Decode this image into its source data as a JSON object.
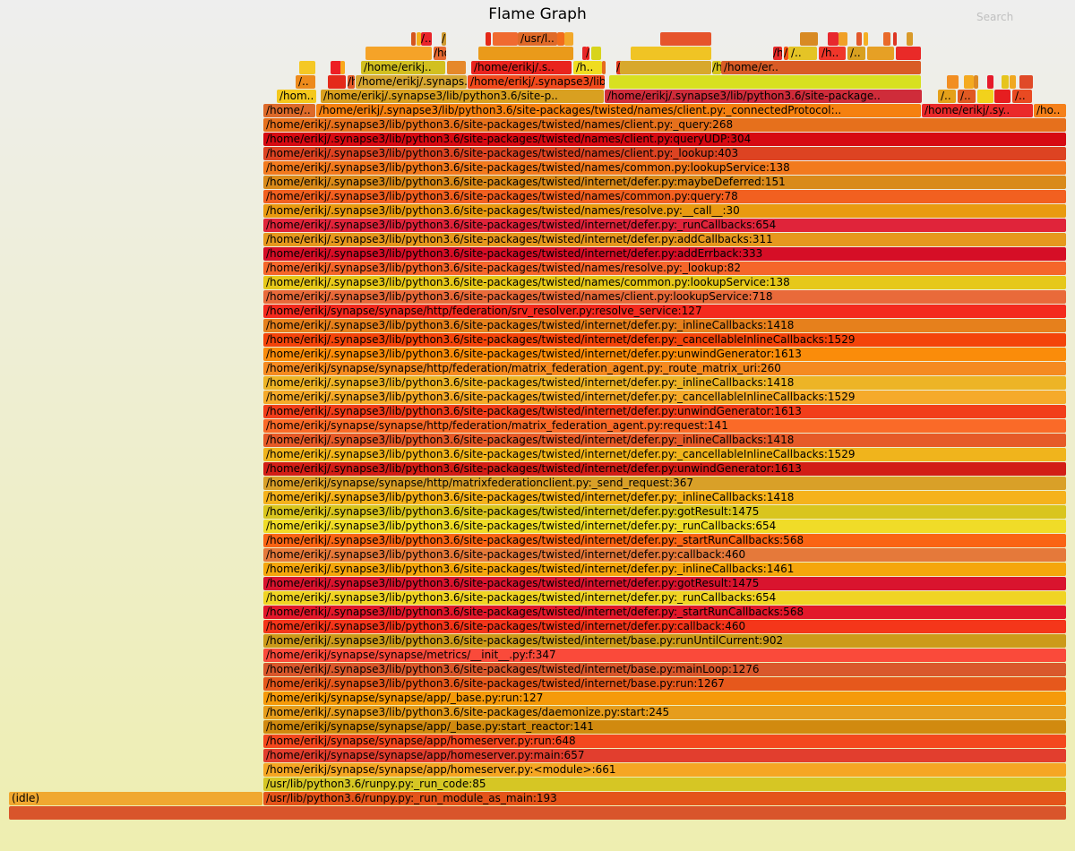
{
  "title": "Flame Graph",
  "search_label": "Search",
  "frames": [
    {
      "label": "",
      "color": "#d9552b"
    },
    {
      "label": "(idle)",
      "color": "#f0a830"
    },
    {
      "label": "/usr/lib/python3.6/runpy.py:_run_module_as_main:193",
      "color": "#e4541a"
    },
    {
      "label": "/usr/lib/python3.6/runpy.py:_run_code:85",
      "color": "#d6c624"
    },
    {
      "label": "/home/erikj/synapse/synapse/app/homeserver.py:<module>:661",
      "color": "#f5a623"
    },
    {
      "label": "/home/erikj/synapse/synapse/app/homeserver.py:main:657",
      "color": "#e23e2e"
    },
    {
      "label": "/home/erikj/synapse/synapse/app/homeserver.py:run:648",
      "color": "#f4481e"
    },
    {
      "label": "/home/erikj/synapse/synapse/app/_base.py:start_reactor:141",
      "color": "#d18a0f"
    },
    {
      "label": "/home/erikj/.synapse3/lib/python3.6/site-packages/daemonize.py:start:245",
      "color": "#e69d1c"
    },
    {
      "label": "/home/erikj/synapse/synapse/app/_base.py:run:127",
      "color": "#f59a0a"
    },
    {
      "label": "/home/erikj/.synapse3/lib/python3.6/site-packages/twisted/internet/base.py:run:1267",
      "color": "#e6581c"
    },
    {
      "label": "/home/erikj/.synapse3/lib/python3.6/site-packages/twisted/internet/base.py:mainLoop:1276",
      "color": "#d9582c"
    },
    {
      "label": "/home/erikj/synapse/synapse/metrics/__init__.py:f:347",
      "color": "#fa4a3a"
    },
    {
      "label": "/home/erikj/.synapse3/lib/python3.6/site-packages/twisted/internet/base.py:runUntilCurrent:902",
      "color": "#cc9a1a"
    },
    {
      "label": "/home/erikj/.synapse3/lib/python3.6/site-packages/twisted/internet/defer.py:callback:460",
      "color": "#f4361a"
    },
    {
      "label": "/home/erikj/.synapse3/lib/python3.6/site-packages/twisted/internet/defer.py:_startRunCallbacks:568",
      "color": "#e2182a"
    },
    {
      "label": "/home/erikj/.synapse3/lib/python3.6/site-packages/twisted/internet/defer.py:_runCallbacks:654",
      "color": "#f0d424"
    },
    {
      "label": "/home/erikj/.synapse3/lib/python3.6/site-packages/twisted/internet/defer.py:gotResult:1475",
      "color": "#d9142e"
    },
    {
      "label": "/home/erikj/.synapse3/lib/python3.6/site-packages/twisted/internet/defer.py:_inlineCallbacks:1461",
      "color": "#f5a60c"
    },
    {
      "label": "/home/erikj/.synapse3/lib/python3.6/site-packages/twisted/internet/defer.py:callback:460",
      "color": "#e5793a"
    },
    {
      "label": "/home/erikj/.synapse3/lib/python3.6/site-packages/twisted/internet/defer.py:_startRunCallbacks:568",
      "color": "#fa6414"
    },
    {
      "label": "/home/erikj/.synapse3/lib/python3.6/site-packages/twisted/internet/defer.py:_runCallbacks:654",
      "color": "#f0dc28"
    },
    {
      "label": "/home/erikj/.synapse3/lib/python3.6/site-packages/twisted/internet/defer.py:gotResult:1475",
      "color": "#d9c51e"
    },
    {
      "label": "/home/erikj/.synapse3/lib/python3.6/site-packages/twisted/internet/defer.py:_inlineCallbacks:1418",
      "color": "#f5b21c"
    },
    {
      "label": "/home/erikj/synapse/synapse/http/matrixfederationclient.py:_send_request:367",
      "color": "#d9a028"
    },
    {
      "label": "/home/erikj/.synapse3/lib/python3.6/site-packages/twisted/internet/defer.py:unwindGenerator:1613",
      "color": "#d21e16"
    },
    {
      "label": "/home/erikj/.synapse3/lib/python3.6/site-packages/twisted/internet/defer.py:_cancellableInlineCallbacks:1529",
      "color": "#f0b41c"
    },
    {
      "label": "/home/erikj/.synapse3/lib/python3.6/site-packages/twisted/internet/defer.py:_inlineCallbacks:1418",
      "color": "#e65a28"
    },
    {
      "label": "/home/erikj/synapse/synapse/http/federation/matrix_federation_agent.py:request:141",
      "color": "#fa6a28"
    },
    {
      "label": "/home/erikj/.synapse3/lib/python3.6/site-packages/twisted/internet/defer.py:unwindGenerator:1613",
      "color": "#f23e1a"
    },
    {
      "label": "/home/erikj/.synapse3/lib/python3.6/site-packages/twisted/internet/defer.py:_cancellableInlineCallbacks:1529",
      "color": "#f5aa2a"
    },
    {
      "label": "/home/erikj/.synapse3/lib/python3.6/site-packages/twisted/internet/defer.py:_inlineCallbacks:1418",
      "color": "#edb426"
    },
    {
      "label": "/home/erikj/synapse/synapse/http/federation/matrix_federation_agent.py:_route_matrix_uri:260",
      "color": "#f58a20"
    },
    {
      "label": "/home/erikj/.synapse3/lib/python3.6/site-packages/twisted/internet/defer.py:unwindGenerator:1613",
      "color": "#fa8c0a"
    },
    {
      "label": "/home/erikj/.synapse3/lib/python3.6/site-packages/twisted/internet/defer.py:_cancellableInlineCallbacks:1529",
      "color": "#f4440a"
    },
    {
      "label": "/home/erikj/.synapse3/lib/python3.6/site-packages/twisted/internet/defer.py:_inlineCallbacks:1418",
      "color": "#e6801c"
    },
    {
      "label": "/home/erikj/synapse/synapse/http/federation/srv_resolver.py:resolve_service:127",
      "color": "#f42a1e"
    },
    {
      "label": "/home/erikj/.synapse3/lib/python3.6/site-packages/twisted/names/client.py:lookupService:718",
      "color": "#e96a3a"
    },
    {
      "label": "/home/erikj/.synapse3/lib/python3.6/site-packages/twisted/names/common.py:lookupService:138",
      "color": "#e6c81a"
    },
    {
      "label": "/home/erikj/.synapse3/lib/python3.6/site-packages/twisted/names/resolve.py:_lookup:82",
      "color": "#f5662a"
    },
    {
      "label": "/home/erikj/.synapse3/lib/python3.6/site-packages/twisted/internet/defer.py:addErrback:333",
      "color": "#d60e26"
    },
    {
      "label": "/home/erikj/.synapse3/lib/python3.6/site-packages/twisted/internet/defer.py:addCallbacks:311",
      "color": "#e6981e"
    },
    {
      "label": "/home/erikj/.synapse3/lib/python3.6/site-packages/twisted/internet/defer.py:_runCallbacks:654",
      "color": "#e0243a"
    },
    {
      "label": "/home/erikj/.synapse3/lib/python3.6/site-packages/twisted/names/resolve.py:__call__:30",
      "color": "#e99a10"
    },
    {
      "label": "/home/erikj/.synapse3/lib/python3.6/site-packages/twisted/names/common.py:query:78",
      "color": "#f26020"
    },
    {
      "label": "/home/erikj/.synapse3/lib/python3.6/site-packages/twisted/internet/defer.py:maybeDeferred:151",
      "color": "#d98a1a"
    },
    {
      "label": "/home/erikj/.synapse3/lib/python3.6/site-packages/twisted/names/common.py:lookupService:138",
      "color": "#f27a1e"
    },
    {
      "label": "/home/erikj/.synapse3/lib/python3.6/site-packages/twisted/names/client.py:_lookup:403",
      "color": "#dd4322"
    },
    {
      "label": "/home/erikj/.synapse3/lib/python3.6/site-packages/twisted/names/client.py:queryUDP:304",
      "color": "#d60a12"
    },
    {
      "label": "/home/erikj/.synapse3/lib/python3.6/site-packages/twisted/names/client.py:_query:268",
      "color": "#e6701c"
    },
    {
      "label": "/home/..",
      "color": "#dd6a2a"
    },
    {
      "label": "/home/erikj/.synapse3/lib/python3.6/site-packages/twisted/names/client.py:_connectedProtocol:..",
      "color": "#f58010"
    },
    {
      "label": "/home/erikj/.sy..",
      "color": "#ea2a2a"
    },
    {
      "label": "/ho..",
      "color": "#f5801a"
    },
    {
      "label": "/hom..",
      "color": "#f4c81c"
    },
    {
      "label": "/home/erikj/.synapse3/lib/python3.6/site-p..",
      "color": "#d9a020"
    },
    {
      "label": "/home/erikj/.synapse3/lib/python3.6/site-package..",
      "color": "#cf2c3a"
    },
    {
      "label": "/..",
      "color": "#e4a01a"
    },
    {
      "label": "/..",
      "color": "#e05a22"
    },
    {
      "label": "",
      "color": "#f2d21c"
    },
    {
      "label": "",
      "color": "#e61e20"
    },
    {
      "label": "/..",
      "color": "#e94a22"
    },
    {
      "label": "/..",
      "color": "#ed8a1c"
    },
    {
      "label": "",
      "color": "#e42a1a"
    },
    {
      "label": "/home/erikj/.sy..",
      "color": "#e45a28"
    },
    {
      "label": "/home/erikj/.synaps..",
      "color": "#d6a632"
    },
    {
      "label": "/home/erikj/.synapse3/lib/python3.6/site-packag..",
      "color": "#f24a1c"
    },
    {
      "label": "",
      "color": "#d8e020"
    },
    {
      "label": "",
      "color": "#f28e22"
    },
    {
      "label": "",
      "color": "#f4aa20"
    },
    {
      "label": "",
      "color": "#dd8a24"
    },
    {
      "label": "",
      "color": "#e61a2a"
    },
    {
      "label": "",
      "color": "#e6c41c"
    },
    {
      "label": "",
      "color": "#f0a820"
    },
    {
      "label": "",
      "color": "#e04a28"
    },
    {
      "label": "",
      "color": "#f5c825"
    },
    {
      "label": "",
      "color": "#ed1e24"
    },
    {
      "label": "",
      "color": "#f8a81c"
    },
    {
      "label": "/home/erikj..",
      "color": "#d2c020"
    },
    {
      "label": "",
      "color": "#e6882a"
    },
    {
      "label": "/home/erikj/.s..",
      "color": "#e9241e"
    },
    {
      "label": "/h..",
      "color": "#f0dc20"
    },
    {
      "label": "",
      "color": "#e66a1c"
    },
    {
      "label": "/home/erikj/..",
      "color": "#e43a1e"
    },
    {
      "label": "",
      "color": "#d8a82c"
    },
    {
      "label": "/home/erikj/.synapse3/lib/pyt..",
      "color": "#d6c41a"
    },
    {
      "label": "/home/er..",
      "color": "#d95c26"
    },
    {
      "label": "",
      "color": "#f5a328"
    },
    {
      "label": "/home/erikj/..",
      "color": "#e86a32"
    },
    {
      "label": "",
      "color": "#ea9a1a"
    },
    {
      "label": "",
      "color": "#e6282a"
    },
    {
      "label": "/home/erik..",
      "color": "#f0241c"
    },
    {
      "label": "",
      "color": "#d8d41c"
    },
    {
      "label": "",
      "color": "#f0c424"
    },
    {
      "label": "/h..",
      "color": "#e82a2a"
    },
    {
      "label": "/h..",
      "color": "#f55414"
    },
    {
      "label": "/..",
      "color": "#e4c426"
    },
    {
      "label": "/h..",
      "color": "#f0362a"
    },
    {
      "label": "/..",
      "color": "#d8a020"
    },
    {
      "label": "",
      "color": "#e6a025"
    },
    {
      "label": "",
      "color": "#e92a28"
    },
    {
      "label": "",
      "color": "#d5561e"
    },
    {
      "label": "",
      "color": "#f5b01a"
    },
    {
      "label": "/..",
      "color": "#e9242a"
    },
    {
      "label": "/ho..",
      "color": "#cf9a30"
    },
    {
      "label": "",
      "color": "#e42818"
    },
    {
      "label": "",
      "color": "#f06a30"
    },
    {
      "label": "/usr/l..",
      "color": "#e06a28"
    },
    {
      "label": "",
      "color": "#f26c1c"
    },
    {
      "label": "",
      "color": "#f2a82a"
    },
    {
      "label": "",
      "color": "#e6542c"
    },
    {
      "label": "",
      "color": "#d88a24"
    },
    {
      "label": "",
      "color": "#e8282e"
    },
    {
      "label": "",
      "color": "#f0a028"
    },
    {
      "label": "",
      "color": "#e2582c"
    },
    {
      "label": "",
      "color": "#f5b024"
    },
    {
      "label": "",
      "color": "#e96a2a"
    },
    {
      "label": "",
      "color": "#dd3624"
    },
    {
      "label": "",
      "color": "#d99a2a"
    }
  ]
}
